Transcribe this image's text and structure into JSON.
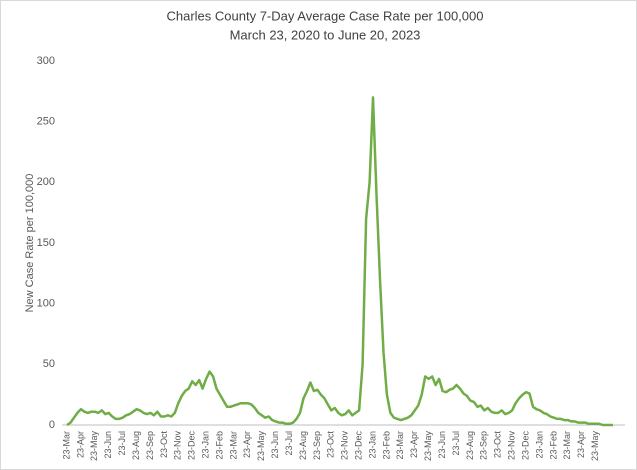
{
  "chart_data": {
    "type": "line",
    "title": "Charles County 7-Day Average Case Rate per 100,000",
    "subtitle": "March 23, 2020 to June 20, 2023",
    "y_label": "New Case Rate per 100,000",
    "categories": [
      "23-Mar",
      null,
      null,
      null,
      "23-Apr",
      null,
      null,
      null,
      "23-May",
      null,
      null,
      null,
      "23-Jun",
      null,
      null,
      null,
      "23-Jul",
      null,
      null,
      null,
      "23-Aug",
      null,
      null,
      null,
      "23-Sep",
      null,
      null,
      null,
      "23-Oct",
      null,
      null,
      null,
      "23-Nov",
      null,
      null,
      null,
      "23-Dec",
      null,
      null,
      null,
      "23-Jan",
      null,
      null,
      null,
      "23-Feb",
      null,
      null,
      null,
      "23-Mar",
      null,
      null,
      null,
      "23-Apr",
      null,
      null,
      null,
      "23-May",
      null,
      null,
      null,
      "23-Jun",
      null,
      null,
      null,
      "23-Jul",
      null,
      null,
      null,
      "23-Aug",
      null,
      null,
      null,
      "23-Sep",
      null,
      null,
      null,
      "23-Oct",
      null,
      null,
      null,
      "23-Nov",
      null,
      null,
      null,
      "23-Dec",
      null,
      null,
      null,
      "23-Jan",
      null,
      null,
      null,
      "23-Feb",
      null,
      null,
      null,
      "23-Mar",
      null,
      null,
      null,
      "23-Apr",
      null,
      null,
      null,
      "23-May",
      null,
      null,
      null,
      "23-Jun",
      null,
      null,
      null,
      "23-Jul",
      null,
      null,
      null,
      "23-Aug",
      null,
      null,
      null,
      "23-Sep",
      null,
      null,
      null,
      "23-Oct",
      null,
      null,
      null,
      "23-Nov",
      null,
      null,
      null,
      "23-Dec",
      null,
      null,
      null,
      "23-Jan",
      null,
      null,
      null,
      "23-Feb",
      null,
      null,
      null,
      "23-Mar",
      null,
      null,
      null,
      "23-Apr",
      null,
      null,
      null,
      "23-May",
      null,
      null,
      null,
      null,
      null
    ],
    "series": [
      {
        "name": "New Case Rate per 100,000",
        "color": "#70ad47",
        "values": [
          0,
          2,
          6,
          10,
          13,
          11,
          10,
          11,
          11,
          10,
          12,
          9,
          10,
          7,
          5,
          5,
          6,
          8,
          9,
          11,
          13,
          12,
          10,
          9,
          10,
          8,
          11,
          7,
          7,
          8,
          7,
          10,
          18,
          24,
          28,
          30,
          36,
          33,
          37,
          30,
          38,
          44,
          40,
          30,
          25,
          20,
          15,
          15,
          16,
          17,
          18,
          18,
          18,
          17,
          14,
          10,
          8,
          6,
          7,
          4,
          3,
          2,
          2,
          1,
          1,
          2,
          5,
          10,
          22,
          28,
          35,
          28,
          29,
          25,
          22,
          17,
          12,
          14,
          10,
          8,
          9,
          12,
          8,
          10,
          12,
          50,
          170,
          200,
          270,
          190,
          120,
          60,
          25,
          10,
          6,
          5,
          4,
          5,
          6,
          8,
          12,
          16,
          25,
          40,
          38,
          40,
          33,
          38,
          28,
          27,
          29,
          30,
          33,
          30,
          26,
          24,
          20,
          19,
          15,
          16,
          12,
          14,
          11,
          10,
          10,
          12,
          9,
          10,
          12,
          18,
          22,
          25,
          27,
          26,
          15,
          13,
          12,
          10,
          9,
          7,
          6,
          5,
          5,
          4,
          4,
          3,
          3,
          2,
          2,
          2,
          1,
          1,
          1,
          1,
          0,
          0,
          0,
          0
        ]
      }
    ],
    "ylim": [
      0,
      300
    ],
    "yticks": [
      0,
      50,
      100,
      150,
      200,
      250,
      300
    ],
    "grid": false
  }
}
